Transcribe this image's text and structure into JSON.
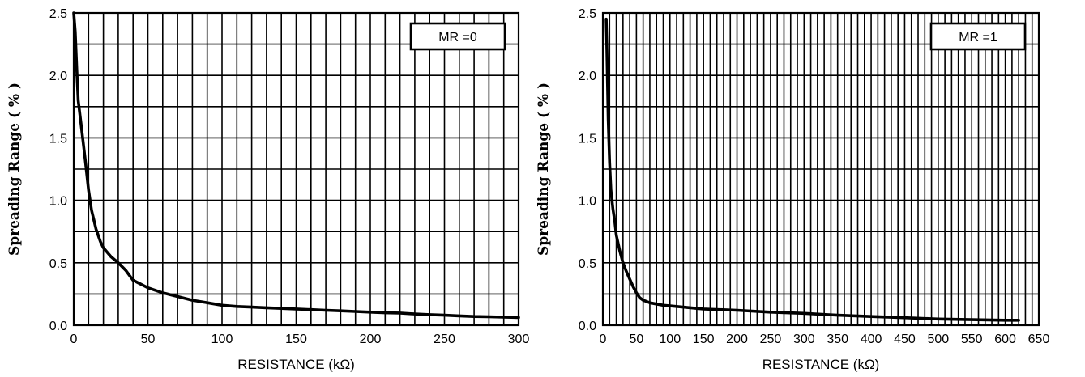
{
  "chart_data": [
    {
      "type": "line",
      "xlabel": "RESISTANCE (kΩ)",
      "ylabel": "Spreading Range ( % )",
      "legend": "MR =0",
      "legend_position": "top-right",
      "grid": true,
      "xlim": [
        0,
        300
      ],
      "ylim": [
        0,
        2.5
      ],
      "x_ticks": [
        "0",
        "50",
        "100",
        "150",
        "200",
        "250",
        "300"
      ],
      "y_ticks": [
        "0.0",
        "0.5",
        "1.0",
        "1.5",
        "2.0",
        "2.5"
      ],
      "series": [
        {
          "x": [
            0,
            1,
            2,
            3,
            5,
            8,
            10,
            12,
            15,
            18,
            20,
            25,
            30,
            35,
            40,
            45,
            50,
            60,
            70,
            80,
            90,
            100,
            110,
            120,
            130,
            140,
            150,
            160,
            170,
            180,
            190,
            200,
            210,
            220,
            230,
            240,
            250,
            260,
            270,
            280,
            290,
            300
          ],
          "y": [
            2.5,
            2.35,
            2.05,
            1.8,
            1.6,
            1.3,
            1.08,
            0.92,
            0.77,
            0.67,
            0.62,
            0.55,
            0.5,
            0.44,
            0.36,
            0.33,
            0.3,
            0.26,
            0.23,
            0.2,
            0.18,
            0.16,
            0.15,
            0.145,
            0.14,
            0.135,
            0.13,
            0.125,
            0.12,
            0.115,
            0.11,
            0.105,
            0.1,
            0.098,
            0.09,
            0.085,
            0.08,
            0.075,
            0.07,
            0.068,
            0.065,
            0.062
          ]
        }
      ]
    },
    {
      "type": "line",
      "xlabel": "RESISTANCE (kΩ)",
      "ylabel": "Spreading Range ( % )",
      "legend": "MR =1",
      "legend_position": "top-right",
      "grid": true,
      "xlim": [
        0,
        650
      ],
      "ylim": [
        0,
        2.5
      ],
      "x_ticks": [
        "0",
        "50",
        "100",
        "150",
        "200",
        "250",
        "300",
        "350",
        "400",
        "450",
        "500",
        "550",
        "600",
        "650"
      ],
      "y_ticks": [
        "0.0",
        "0.5",
        "1.0",
        "1.5",
        "2.0",
        "2.5"
      ],
      "series": [
        {
          "x": [
            5,
            6,
            8,
            10,
            12,
            15,
            18,
            20,
            25,
            30,
            35,
            40,
            45,
            50,
            55,
            60,
            70,
            80,
            90,
            100,
            150,
            200,
            250,
            300,
            350,
            400,
            450,
            500,
            550,
            600,
            620
          ],
          "y": [
            2.45,
            2.2,
            1.65,
            1.3,
            1.08,
            0.93,
            0.82,
            0.72,
            0.6,
            0.5,
            0.43,
            0.37,
            0.31,
            0.26,
            0.22,
            0.2,
            0.18,
            0.17,
            0.16,
            0.155,
            0.13,
            0.12,
            0.105,
            0.095,
            0.08,
            0.07,
            0.06,
            0.05,
            0.045,
            0.04,
            0.04
          ]
        }
      ]
    }
  ]
}
